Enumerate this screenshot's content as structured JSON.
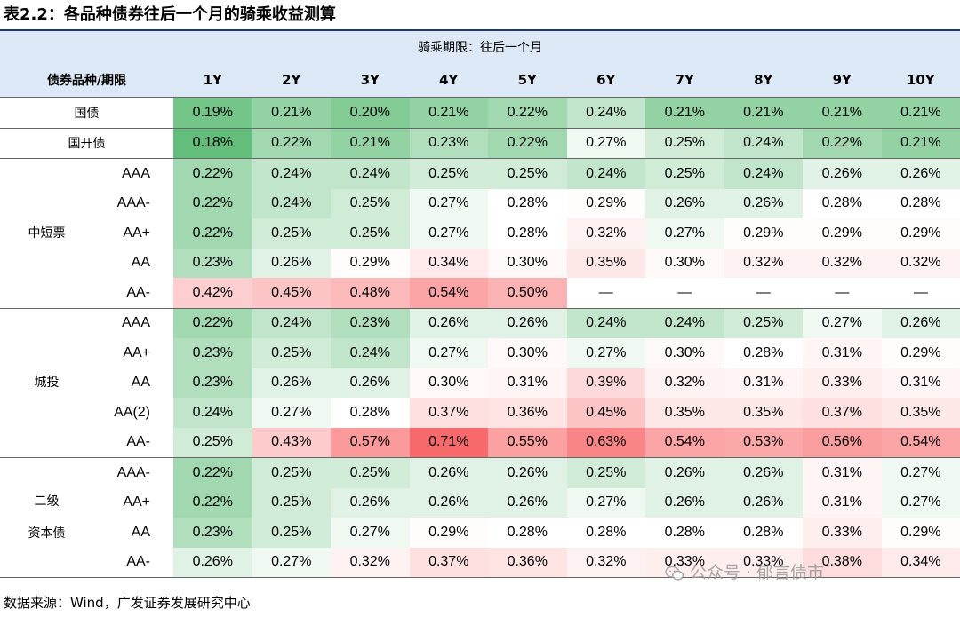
{
  "title": "表2.2：各品种债券往后一个月的骑乘收益测算",
  "header": {
    "period_label": "骑乘期限：往后一个月",
    "corner_label": "债券品种/期限",
    "columns": [
      "1Y",
      "2Y",
      "3Y",
      "4Y",
      "5Y",
      "6Y",
      "7Y",
      "8Y",
      "9Y",
      "10Y"
    ]
  },
  "groups": [
    {
      "category": "国债",
      "rows": [
        {
          "rating": "",
          "values": [
            "0.19%",
            "0.21%",
            "0.20%",
            "0.21%",
            "0.22%",
            "0.24%",
            "0.21%",
            "0.21%",
            "0.21%",
            "0.21%"
          ]
        }
      ]
    },
    {
      "category": "国开债",
      "rows": [
        {
          "rating": "",
          "values": [
            "0.18%",
            "0.22%",
            "0.21%",
            "0.23%",
            "0.22%",
            "0.27%",
            "0.25%",
            "0.24%",
            "0.22%",
            "0.21%"
          ]
        }
      ]
    },
    {
      "category": "中短票",
      "rows": [
        {
          "rating": "AAA",
          "values": [
            "0.22%",
            "0.24%",
            "0.24%",
            "0.25%",
            "0.25%",
            "0.24%",
            "0.25%",
            "0.24%",
            "0.26%",
            "0.26%"
          ]
        },
        {
          "rating": "AAA-",
          "values": [
            "0.22%",
            "0.24%",
            "0.25%",
            "0.27%",
            "0.28%",
            "0.29%",
            "0.26%",
            "0.26%",
            "0.28%",
            "0.28%"
          ]
        },
        {
          "rating": "AA+",
          "values": [
            "0.22%",
            "0.25%",
            "0.25%",
            "0.27%",
            "0.28%",
            "0.32%",
            "0.27%",
            "0.29%",
            "0.29%",
            "0.29%"
          ]
        },
        {
          "rating": "AA",
          "values": [
            "0.23%",
            "0.26%",
            "0.29%",
            "0.34%",
            "0.30%",
            "0.35%",
            "0.30%",
            "0.32%",
            "0.32%",
            "0.32%"
          ]
        },
        {
          "rating": "AA-",
          "values": [
            "0.42%",
            "0.45%",
            "0.48%",
            "0.54%",
            "0.50%",
            "—",
            "—",
            "—",
            "—",
            "—"
          ]
        }
      ]
    },
    {
      "category": "城投",
      "rows": [
        {
          "rating": "AAA",
          "values": [
            "0.22%",
            "0.24%",
            "0.23%",
            "0.26%",
            "0.26%",
            "0.24%",
            "0.24%",
            "0.25%",
            "0.27%",
            "0.26%"
          ]
        },
        {
          "rating": "AA+",
          "values": [
            "0.23%",
            "0.25%",
            "0.24%",
            "0.27%",
            "0.30%",
            "0.27%",
            "0.30%",
            "0.28%",
            "0.31%",
            "0.29%"
          ]
        },
        {
          "rating": "AA",
          "values": [
            "0.23%",
            "0.26%",
            "0.26%",
            "0.30%",
            "0.31%",
            "0.39%",
            "0.32%",
            "0.31%",
            "0.33%",
            "0.31%"
          ]
        },
        {
          "rating": "AA(2)",
          "values": [
            "0.24%",
            "0.27%",
            "0.28%",
            "0.37%",
            "0.36%",
            "0.45%",
            "0.35%",
            "0.35%",
            "0.37%",
            "0.35%"
          ]
        },
        {
          "rating": "AA-",
          "values": [
            "0.25%",
            "0.43%",
            "0.57%",
            "0.71%",
            "0.55%",
            "0.63%",
            "0.54%",
            "0.53%",
            "0.56%",
            "0.54%"
          ]
        }
      ]
    },
    {
      "category": "二级\n资本债",
      "rows": [
        {
          "rating": "AAA-",
          "values": [
            "0.22%",
            "0.25%",
            "0.25%",
            "0.26%",
            "0.26%",
            "0.25%",
            "0.26%",
            "0.26%",
            "0.31%",
            "0.27%"
          ]
        },
        {
          "rating": "AA+",
          "values": [
            "0.22%",
            "0.25%",
            "0.26%",
            "0.26%",
            "0.26%",
            "0.27%",
            "0.26%",
            "0.26%",
            "0.31%",
            "0.27%"
          ]
        },
        {
          "rating": "AA",
          "values": [
            "0.23%",
            "0.25%",
            "0.27%",
            "0.29%",
            "0.28%",
            "0.28%",
            "0.28%",
            "0.28%",
            "0.33%",
            "0.29%"
          ]
        },
        {
          "rating": "AA-",
          "values": [
            "0.26%",
            "0.27%",
            "0.32%",
            "0.37%",
            "0.36%",
            "0.32%",
            "0.33%",
            "0.33%",
            "0.38%",
            "0.34%"
          ]
        }
      ]
    }
  ],
  "source": "数据来源：Wind，广发证券发展研究中心",
  "watermark": "公众号 · 郁言债市",
  "colors": {
    "green": "#63be7b",
    "white": "#ffffff",
    "red": "#f8696b",
    "header_bg": "#dde8f6"
  }
}
